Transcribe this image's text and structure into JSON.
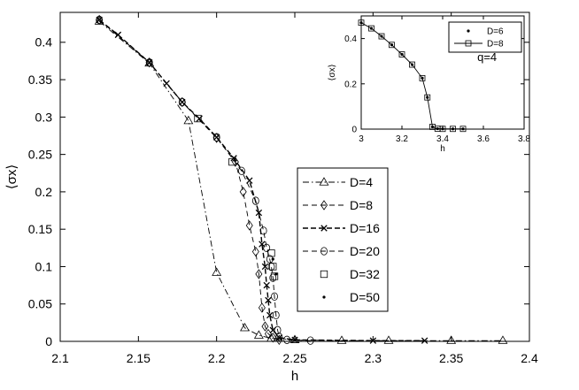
{
  "chart_data": [
    {
      "type": "line",
      "xlabel": "h",
      "ylabel": "⟨σx⟩",
      "xlim": [
        2.1,
        2.4
      ],
      "ylim": [
        0,
        0.44
      ],
      "xticks": [
        "2.1",
        "2.15",
        "2.2",
        "2.25",
        "2.3",
        "2.35",
        "2.4"
      ],
      "yticks": [
        "0",
        "0.05",
        "0.1",
        "0.15",
        "0.2",
        "0.25",
        "0.3",
        "0.35",
        "0.4"
      ],
      "grid": false,
      "legend_position": "center-right",
      "series": [
        {
          "name": "D=4",
          "marker": "triangle",
          "dash": "dash-dot",
          "x": [
            2.125,
            2.157,
            2.182,
            2.2,
            2.218,
            2.227,
            2.235,
            2.25,
            2.28,
            2.31,
            2.35,
            2.383
          ],
          "y": [
            0.428,
            0.372,
            0.295,
            0.092,
            0.018,
            0.008,
            0.004,
            0.002,
            0.001,
            0.001,
            0.001,
            0.001
          ]
        },
        {
          "name": "D=8",
          "marker": "diamond",
          "dash": "dashed",
          "x": [
            2.125,
            2.157,
            2.178,
            2.2,
            2.212,
            2.217,
            2.221,
            2.225,
            2.227,
            2.229,
            2.231,
            2.233,
            2.236,
            2.24
          ],
          "y": [
            0.43,
            0.373,
            0.32,
            0.272,
            0.24,
            0.2,
            0.155,
            0.12,
            0.09,
            0.045,
            0.02,
            0.01,
            0.005,
            0.002
          ]
        },
        {
          "name": "D=16",
          "marker": "x",
          "dash": "dashed-bold",
          "x": [
            2.125,
            2.137,
            2.157,
            2.168,
            2.178,
            2.189,
            2.2,
            2.211,
            2.221,
            2.227,
            2.229,
            2.231,
            2.232,
            2.233,
            2.234,
            2.236,
            2.24,
            2.25,
            2.3,
            2.333
          ],
          "y": [
            0.43,
            0.41,
            0.373,
            0.345,
            0.32,
            0.298,
            0.273,
            0.245,
            0.215,
            0.172,
            0.13,
            0.1,
            0.075,
            0.055,
            0.035,
            0.015,
            0.005,
            0.002,
            0.001,
            0.001
          ]
        },
        {
          "name": "D=20",
          "marker": "circle",
          "dash": "dashed",
          "x": [
            2.125,
            2.157,
            2.178,
            2.2,
            2.216,
            2.225,
            2.23,
            2.232,
            2.234,
            2.235,
            2.236,
            2.237,
            2.238,
            2.239,
            2.24,
            2.245,
            2.26
          ],
          "y": [
            0.43,
            0.373,
            0.32,
            0.273,
            0.228,
            0.188,
            0.148,
            0.125,
            0.11,
            0.1,
            0.085,
            0.06,
            0.035,
            0.015,
            0.006,
            0.002,
            0.001
          ]
        },
        {
          "name": "D=32",
          "marker": "square",
          "dash": "none",
          "x": [
            2.188,
            2.21,
            2.235,
            2.236,
            2.237
          ],
          "y": [
            0.298,
            0.24,
            0.118,
            0.1,
            0.087
          ]
        },
        {
          "name": "D=50",
          "marker": "dot",
          "dash": "none",
          "x": [
            2.236,
            2.238
          ],
          "y": [
            0.11,
            0.09
          ]
        }
      ]
    },
    {
      "type": "line",
      "xlabel": "h",
      "ylabel": "⟨σx⟩",
      "annotation": "q=4",
      "xlim": [
        3.0,
        3.8
      ],
      "ylim": [
        0,
        0.5
      ],
      "xticks": [
        "3",
        "3.2",
        "3.4",
        "3.6",
        "3.8"
      ],
      "yticks": [
        "0",
        "0.2",
        "0.4"
      ],
      "legend_position": "top-right",
      "series": [
        {
          "name": "D=6",
          "marker": "dot",
          "dash": "none",
          "x": [
            3.0,
            3.05,
            3.1,
            3.15,
            3.2,
            3.25,
            3.3,
            3.325,
            3.35,
            3.375,
            3.4,
            3.45,
            3.5
          ],
          "y": [
            0.47,
            0.445,
            0.41,
            0.372,
            0.33,
            0.285,
            0.225,
            0.14,
            0.01,
            0.002,
            0.001,
            0.001,
            0.001
          ]
        },
        {
          "name": "D=8",
          "marker": "square",
          "dash": "solid",
          "x": [
            3.0,
            3.05,
            3.1,
            3.15,
            3.2,
            3.25,
            3.3,
            3.325,
            3.35,
            3.375,
            3.4,
            3.45,
            3.5
          ],
          "y": [
            0.47,
            0.445,
            0.41,
            0.372,
            0.33,
            0.285,
            0.225,
            0.14,
            0.01,
            0.002,
            0.001,
            0.001,
            0.001
          ]
        }
      ]
    }
  ]
}
